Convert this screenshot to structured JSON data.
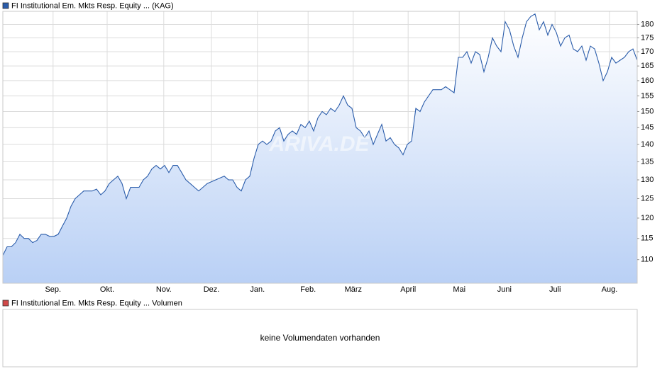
{
  "chart_data": {
    "type": "line",
    "series": [
      {
        "name": "FI Institutional Em. Mkts Resp. Equity ... (KAG)",
        "color": "#2a5caa",
        "values": [
          111,
          113,
          113,
          114,
          116,
          115,
          115,
          114,
          114.5,
          116,
          116,
          115.5,
          115.5,
          116,
          118,
          120,
          123,
          125,
          126,
          127,
          127,
          127,
          127.5,
          126,
          127,
          129,
          130,
          131,
          129,
          125,
          128,
          128,
          128,
          130,
          131,
          133,
          134,
          133,
          134,
          132,
          134,
          134,
          132,
          130,
          129,
          128,
          127,
          128,
          129,
          129.5,
          130,
          130.5,
          131,
          130,
          130,
          128,
          127,
          130,
          131,
          136,
          140,
          141,
          140,
          141,
          144,
          145,
          141,
          143,
          144,
          143,
          146,
          145,
          147,
          144,
          148,
          150,
          149,
          151,
          150,
          152,
          155,
          152,
          151,
          145,
          144,
          142,
          144,
          140,
          143,
          146,
          141,
          142,
          140,
          139,
          137,
          140,
          141,
          151,
          150,
          153,
          155,
          157,
          157,
          157,
          158,
          157,
          156,
          168,
          168,
          170,
          166,
          170,
          169,
          163,
          168,
          175,
          172,
          170,
          181,
          178,
          172,
          168,
          175,
          181,
          183,
          184,
          178,
          181,
          176,
          180,
          177,
          172,
          175,
          176,
          171,
          170,
          172,
          167,
          172,
          171,
          166,
          160,
          163,
          168,
          166,
          167,
          168,
          170,
          171,
          167
        ]
      }
    ],
    "xlim": [
      0,
      149
    ],
    "xticks": [
      {
        "value": 11.8,
        "label": "Sep."
      },
      {
        "value": 24.5,
        "label": "Okt."
      },
      {
        "value": 37.8,
        "label": "Nov."
      },
      {
        "value": 49,
        "label": "Dez."
      },
      {
        "value": 59.8,
        "label": "Jan."
      },
      {
        "value": 71.7,
        "label": "Feb."
      },
      {
        "value": 82.3,
        "label": "März"
      },
      {
        "value": 95.2,
        "label": "April"
      },
      {
        "value": 107.2,
        "label": "Mai"
      },
      {
        "value": 117.8,
        "label": "Juni"
      },
      {
        "value": 129.7,
        "label": "Juli"
      },
      {
        "value": 142.5,
        "label": "Aug."
      }
    ],
    "ylim": [
      104.7,
      185
    ],
    "yticks": [
      110,
      115,
      120,
      125,
      130,
      135,
      140,
      145,
      150,
      155,
      160,
      165,
      170,
      175,
      180
    ],
    "log_scale": true,
    "grid": true,
    "watermark": "ARIVA.DE"
  },
  "volume_panel": {
    "legend": "FI Institutional Em. Mkts Resp. Equity ... Volumen",
    "legend_color": "#d04848",
    "message": "keine Volumendaten vorhanden"
  }
}
